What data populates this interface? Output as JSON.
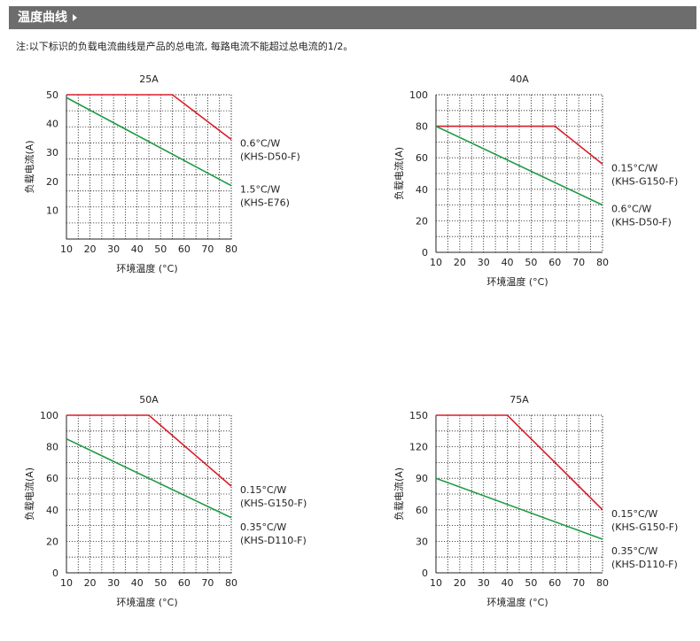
{
  "header": {
    "title": "温度曲线"
  },
  "note": "注:以下标识的负载电流曲线是产品的总电流, 每路电流不能超过总电流的1/2。",
  "colors": {
    "red": "#d81e2a",
    "green": "#1e9a43",
    "header_bg": "#6d6d6d",
    "grid": "#222222"
  },
  "chart_data": [
    {
      "type": "line",
      "title": "25A",
      "xlabel": "环境温度 (°C)",
      "ylabel": "负载电流(A)",
      "xlim": [
        10,
        80
      ],
      "ylim": [
        0,
        50
      ],
      "x_ticks": [
        10,
        20,
        30,
        40,
        50,
        60,
        70,
        80
      ],
      "y_ticks": [
        10,
        20,
        30,
        40,
        50
      ],
      "y_ticks_shown": [
        "10",
        "20",
        "30",
        "40",
        "50"
      ],
      "grid": true,
      "series": [
        {
          "name": "0.6°C/W (KHS-D50-F)",
          "color": "red",
          "x": [
            10,
            55,
            80
          ],
          "y": [
            50,
            50,
            34.5
          ],
          "label_lines": [
            "0.6°C/W",
            "(KHS-D50-F)"
          ]
        },
        {
          "name": "1.5°C/W (KHS-E76)",
          "color": "green",
          "x": [
            10,
            80
          ],
          "y": [
            49,
            18.5
          ],
          "label_lines": [
            "1.5°C/W",
            "(KHS-E76)"
          ]
        }
      ]
    },
    {
      "type": "line",
      "title": "40A",
      "xlabel": "环境温度 (°C)",
      "ylabel": "负载电流(A)",
      "xlim": [
        10,
        80
      ],
      "ylim": [
        0,
        100
      ],
      "x_ticks": [
        10,
        20,
        30,
        40,
        50,
        60,
        70,
        80
      ],
      "y_ticks": [
        0,
        20,
        40,
        60,
        80,
        100
      ],
      "y_ticks_shown": [
        "0",
        "20",
        "40",
        "60",
        "80",
        "100"
      ],
      "grid": true,
      "series": [
        {
          "name": "0.15°C/W (KHS-G150-F)",
          "color": "red",
          "x": [
            10,
            60,
            80
          ],
          "y": [
            80,
            80,
            56
          ],
          "label_lines": [
            "0.15°C/W",
            "(KHS-G150-F)"
          ]
        },
        {
          "name": "0.6°C/W (KHS-D50-F)",
          "color": "green",
          "x": [
            10,
            80
          ],
          "y": [
            80,
            30
          ],
          "label_lines": [
            "0.6°C/W",
            "(KHS-D50-F)"
          ]
        }
      ]
    },
    {
      "type": "line",
      "title": "50A",
      "xlabel": "环境温度 (°C)",
      "ylabel": "负载电流(A)",
      "xlim": [
        10,
        80
      ],
      "ylim": [
        0,
        100
      ],
      "x_ticks": [
        10,
        20,
        30,
        40,
        50,
        60,
        70,
        80
      ],
      "y_ticks": [
        0,
        20,
        40,
        60,
        80,
        100
      ],
      "y_ticks_shown": [
        "0",
        "20",
        "40",
        "60",
        "80",
        "100"
      ],
      "grid": true,
      "series": [
        {
          "name": "0.15°C/W (KHS-G150-F)",
          "color": "red",
          "x": [
            10,
            45,
            80
          ],
          "y": [
            100,
            100,
            55
          ],
          "label_lines": [
            "0.15°C/W",
            "(KHS-G150-F)"
          ]
        },
        {
          "name": "0.35°C/W (KHS-D110-F)",
          "color": "green",
          "x": [
            10,
            80
          ],
          "y": [
            85,
            35
          ],
          "label_lines": [
            "0.35°C/W",
            "(KHS-D110-F)"
          ]
        }
      ]
    },
    {
      "type": "line",
      "title": "75A",
      "xlabel": "环境温度 (°C)",
      "ylabel": "负载电流(A)",
      "xlim": [
        10,
        80
      ],
      "ylim": [
        0,
        150
      ],
      "x_ticks": [
        10,
        20,
        30,
        40,
        50,
        60,
        70,
        80
      ],
      "y_ticks": [
        0,
        30,
        60,
        90,
        120,
        150
      ],
      "y_ticks_shown": [
        "0",
        "30",
        "60",
        "90",
        "120",
        "150"
      ],
      "grid": true,
      "series": [
        {
          "name": "0.15°C/W (KHS-G150-F)",
          "color": "red",
          "x": [
            10,
            40,
            80
          ],
          "y": [
            150,
            150,
            60
          ],
          "label_lines": [
            "0.15°C/W",
            "(KHS-G150-F)"
          ]
        },
        {
          "name": "0.35°C/W (KHS-D110-F)",
          "color": "green",
          "x": [
            10,
            80
          ],
          "y": [
            90,
            32
          ],
          "label_lines": [
            "0.35°C/W",
            "(KHS-D110-F)"
          ]
        }
      ]
    }
  ]
}
